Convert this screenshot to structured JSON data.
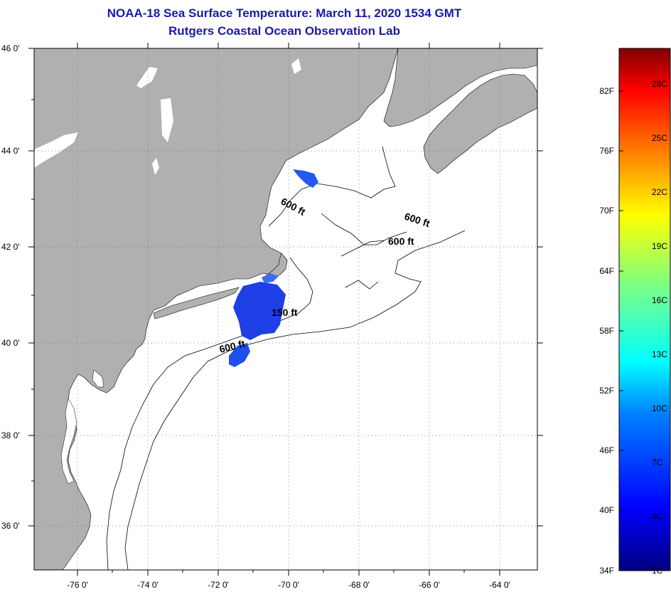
{
  "title": "NOAA-18 Sea Surface Temperature:  March 11, 2020 1534 GMT",
  "subtitle": "Rutgers Coastal Ocean Observation Lab",
  "map": {
    "lon_range": [
      -77.0,
      -63.0
    ],
    "lat_range": [
      35.0,
      46.0
    ],
    "lon_labels": [
      "-76 0'",
      "-74 0'",
      "-72 0'",
      "-70 0'",
      "-68 0'",
      "-66 0'",
      "-64 0'"
    ],
    "lat_labels": [
      "46 0'",
      "44 0'",
      "42 0'",
      "40 0'",
      "38 0'",
      "36 0'"
    ],
    "grid": "dotted",
    "land_color": "#b0b0b0",
    "water_color": "#ffffff"
  },
  "isobath_labels": [
    "600 ft",
    "600 ft",
    "600 ft",
    "150 ft",
    "600 ft"
  ],
  "colorbar": {
    "fahrenheit_labels": [
      "82F",
      "76F",
      "70F",
      "64F",
      "58F",
      "52F",
      "46F",
      "40F",
      "34F"
    ],
    "celsius_labels": [
      "28C",
      "25C",
      "22C",
      "19C",
      "16C",
      "13C",
      "10C",
      "7C",
      "4C",
      "1C"
    ],
    "colors": [
      "#000080",
      "#0000ff",
      "#0080ff",
      "#00ffff",
      "#80ff80",
      "#ffff00",
      "#ff8000",
      "#ff0000",
      "#800000"
    ]
  }
}
